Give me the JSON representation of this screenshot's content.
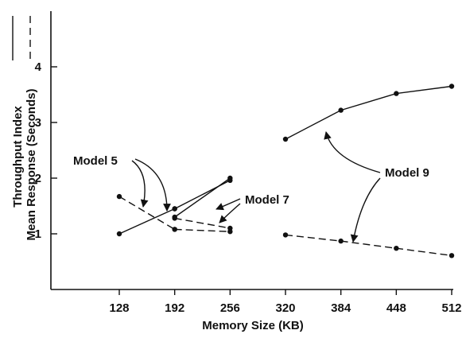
{
  "chart_data": {
    "type": "line",
    "xlabel": "Memory Size (KB)",
    "ylabel_solid": "Throughput Index",
    "ylabel_dashed": "Mean Response (Seconds)",
    "x_ticks": [
      128,
      192,
      256,
      320,
      384,
      448,
      512
    ],
    "y_ticks": [
      1,
      2,
      3,
      4
    ],
    "xlim": [
      64,
      520
    ],
    "ylim": [
      0,
      5
    ],
    "grid": false,
    "series": [
      {
        "name": "Model 5",
        "measure": "throughput",
        "style": "solid",
        "x": [
          128,
          192
        ],
        "y": [
          1.0,
          1.45
        ]
      },
      {
        "name": "Model 5",
        "measure": "response",
        "style": "dashed",
        "x": [
          128,
          192
        ],
        "y": [
          1.67,
          1.08
        ]
      },
      {
        "name": "Model 7",
        "measure": "throughput",
        "style": "solid",
        "x": [
          192,
          256
        ],
        "y": [
          1.3,
          2.0
        ]
      },
      {
        "name": "Model 7",
        "measure": "throughput",
        "style": "solid",
        "x": [
          192,
          256
        ],
        "y": [
          1.45,
          1.96
        ]
      },
      {
        "name": "Model 7",
        "measure": "response",
        "style": "dashed",
        "x": [
          192,
          256
        ],
        "y": [
          1.28,
          1.1
        ]
      },
      {
        "name": "Model 7",
        "measure": "response",
        "style": "dashed",
        "x": [
          192,
          256
        ],
        "y": [
          1.08,
          1.04
        ]
      },
      {
        "name": "Model 9",
        "measure": "throughput",
        "style": "solid",
        "x": [
          320,
          384,
          448,
          512
        ],
        "y": [
          2.7,
          3.22,
          3.52,
          3.65
        ]
      },
      {
        "name": "Model 9",
        "measure": "response",
        "style": "dashed",
        "x": [
          320,
          384,
          448,
          512
        ],
        "y": [
          0.98,
          0.87,
          0.74,
          0.61
        ]
      }
    ],
    "annotations": [
      {
        "text": "Model 5"
      },
      {
        "text": "Model 7"
      },
      {
        "text": "Model 9"
      }
    ]
  }
}
